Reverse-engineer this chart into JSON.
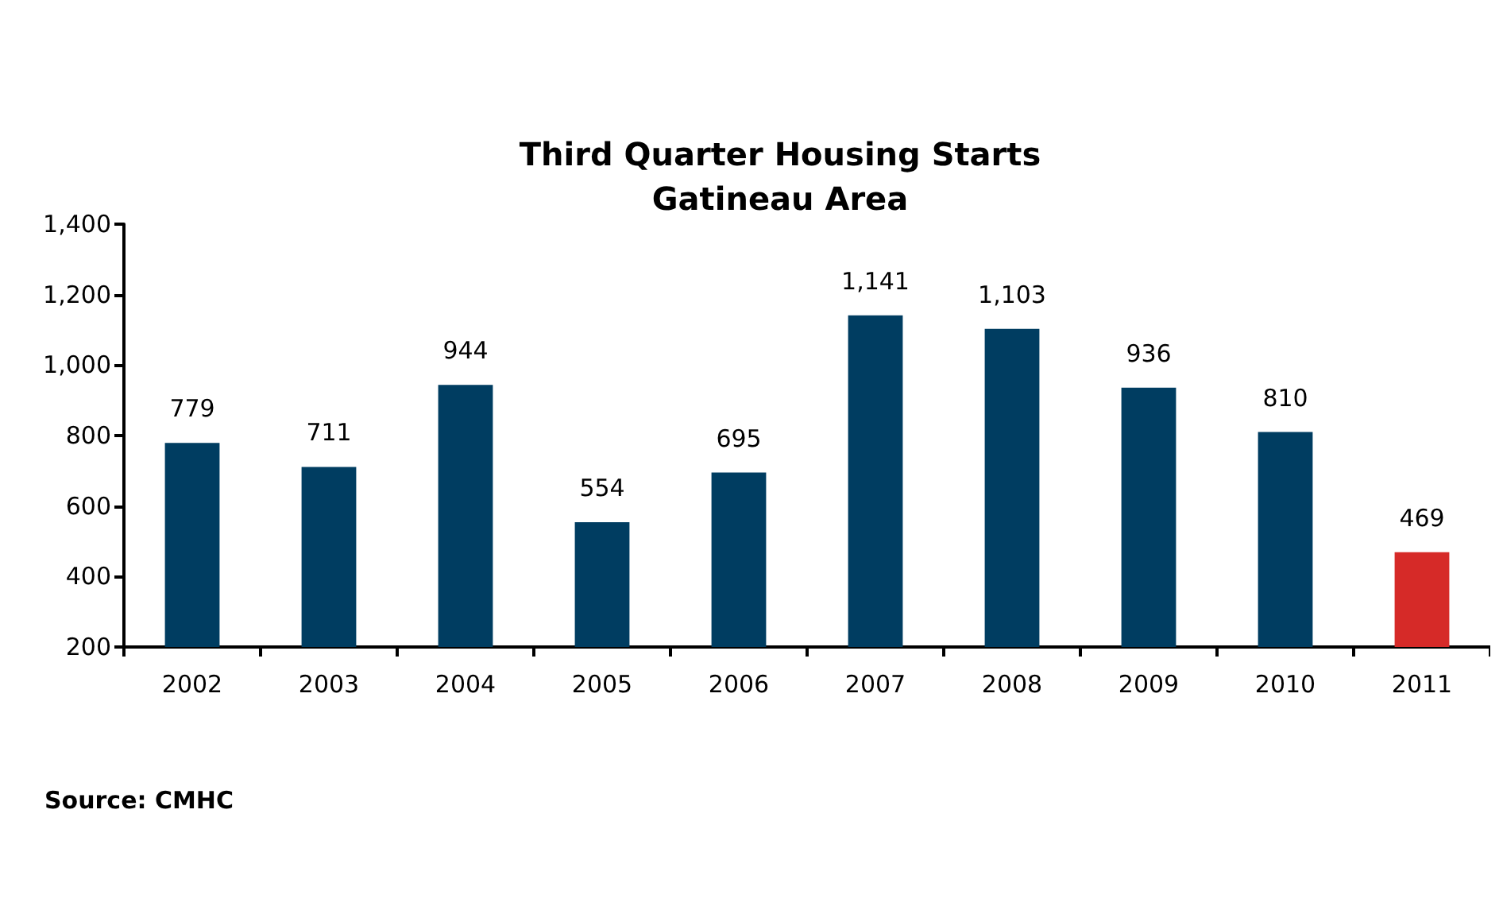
{
  "chart_data": {
    "type": "bar",
    "title": "Third Quarter Housing Starts\nGatineau Area",
    "categories": [
      "2002",
      "2003",
      "2004",
      "2005",
      "2006",
      "2007",
      "2008",
      "2009",
      "2010",
      "2011"
    ],
    "values": [
      779,
      711,
      944,
      554,
      695,
      1141,
      1103,
      936,
      810,
      469
    ],
    "value_labels": [
      "779",
      "711",
      "944",
      "554",
      "695",
      "1,141",
      "1,103",
      "936",
      "810",
      "469"
    ],
    "colors": [
      "#003d61",
      "#003d61",
      "#003d61",
      "#003d61",
      "#003d61",
      "#003d61",
      "#003d61",
      "#003d61",
      "#003d61",
      "#d62a28"
    ],
    "ylim": [
      200,
      1400
    ],
    "yticks": [
      200,
      400,
      600,
      800,
      {
        "value": 1000,
        "label": "1,000"
      },
      {
        "value": 1200,
        "label": "1,200"
      },
      {
        "value": 1400,
        "label": "1,400"
      }
    ],
    "grid": false,
    "annotations": [
      "Source: CMHC"
    ]
  }
}
